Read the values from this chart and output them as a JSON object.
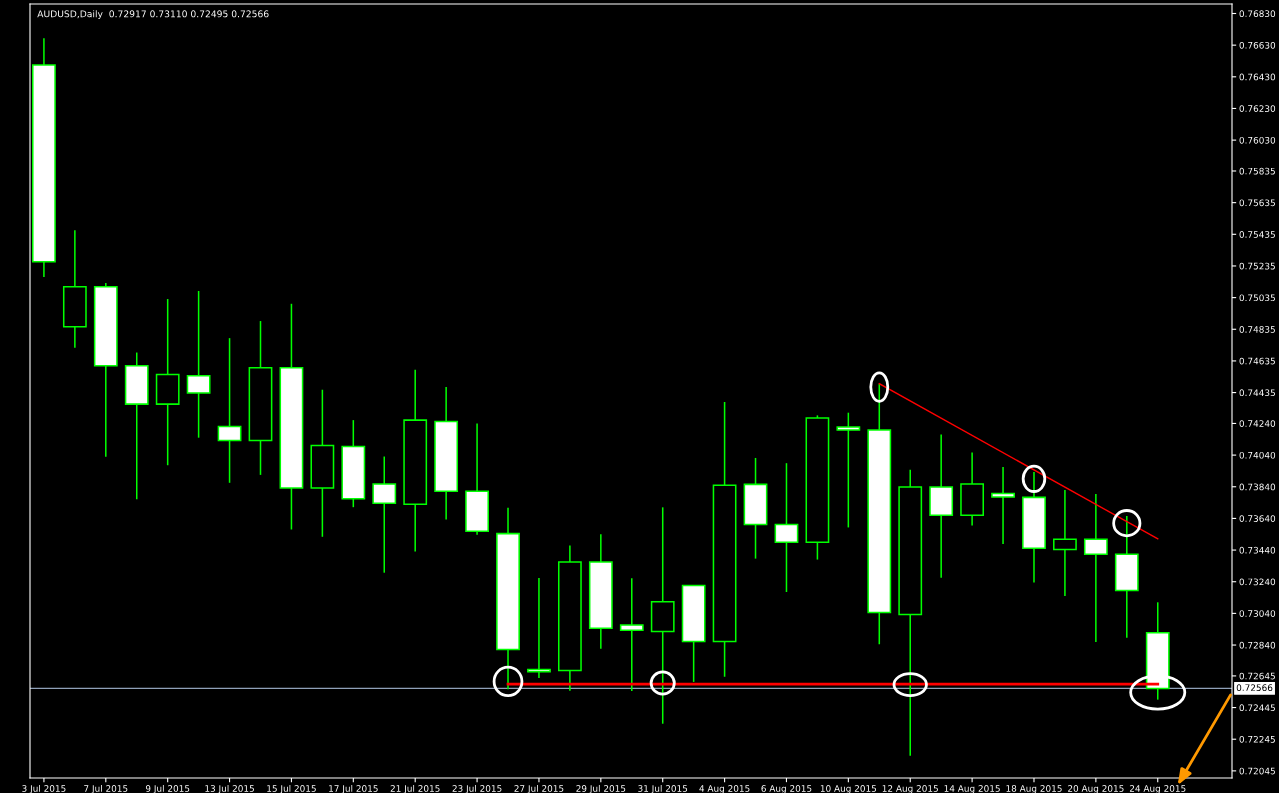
{
  "chart_data": {
    "type": "candlestick",
    "title": "AUDUSD,Daily  0.72917 0.73110 0.72495 0.72566",
    "color": "#00ff00",
    "categories": [
      "3 Jul 2015",
      null,
      "7 Jul 2015",
      null,
      "9 Jul 2015",
      null,
      "13 Jul 2015",
      null,
      "15 Jul 2015",
      null,
      "17 Jul 2015",
      null,
      "21 Jul 2015",
      null,
      "23 Jul 2015",
      null,
      "27 Jul 2015",
      null,
      "29 Jul 2015",
      null,
      "31 Jul 2015",
      null,
      "4 Aug 2015",
      null,
      "6 Aug 2015",
      null,
      "10 Aug 2015",
      null,
      "12 Aug 2015",
      null,
      "14 Aug 2015",
      null,
      "18 Aug 2015",
      null,
      "20 Aug 2015",
      null,
      "24 Aug 2015"
    ],
    "ohlc": [
      [
        0.76504,
        0.76674,
        0.75166,
        0.75261
      ],
      [
        0.74851,
        0.7546,
        0.74718,
        0.75103
      ],
      [
        0.75103,
        0.75128,
        0.7403,
        0.74604
      ],
      [
        0.74604,
        0.74688,
        0.73761,
        0.74362
      ],
      [
        0.74362,
        0.75026,
        0.73976,
        0.74549
      ],
      [
        0.74541,
        0.75077,
        0.7415,
        0.74433
      ],
      [
        0.74221,
        0.74779,
        0.73865,
        0.74132
      ],
      [
        0.74132,
        0.74887,
        0.73915,
        0.74592
      ],
      [
        0.74592,
        0.74996,
        0.7357,
        0.73832
      ],
      [
        0.73832,
        0.74453,
        0.73524,
        0.741
      ],
      [
        0.74095,
        0.74261,
        0.73711,
        0.73764
      ],
      [
        0.73857,
        0.74031,
        0.73297,
        0.73736
      ],
      [
        0.73729,
        0.74579,
        0.73431,
        0.74261
      ],
      [
        0.74253,
        0.74471,
        0.73633,
        0.73812
      ],
      [
        0.73812,
        0.7424,
        0.73537,
        0.73559
      ],
      [
        0.73544,
        0.73708,
        0.7256,
        0.72812
      ],
      [
        0.72686,
        0.73264,
        0.72631,
        0.72671
      ],
      [
        0.72679,
        0.73469,
        0.72552,
        0.73365
      ],
      [
        0.73365,
        0.7354,
        0.72817,
        0.72946
      ],
      [
        0.72966,
        0.73262,
        0.72549,
        0.72933
      ],
      [
        0.72925,
        0.7371,
        0.72343,
        0.73114
      ],
      [
        0.73216,
        0.73216,
        0.72607,
        0.72862
      ],
      [
        0.72862,
        0.74376,
        0.72639,
        0.73849
      ],
      [
        0.73855,
        0.74022,
        0.73386,
        0.73602
      ],
      [
        0.73602,
        0.73989,
        0.73175,
        0.7349
      ],
      [
        0.7349,
        0.74291,
        0.7338,
        0.74274
      ],
      [
        0.74217,
        0.74308,
        0.73583,
        0.74198
      ],
      [
        0.74198,
        0.74491,
        0.72845,
        0.73046
      ],
      [
        0.73033,
        0.73948,
        0.7214,
        0.73838
      ],
      [
        0.73838,
        0.7417,
        0.73265,
        0.7366
      ],
      [
        0.7366,
        0.74056,
        0.73595,
        0.73858
      ],
      [
        0.73797,
        0.73965,
        0.73479,
        0.73775
      ],
      [
        0.73773,
        0.73934,
        0.73235,
        0.73452
      ],
      [
        0.73443,
        0.73819,
        0.7315,
        0.73509
      ],
      [
        0.73509,
        0.73795,
        0.72859,
        0.73413
      ],
      [
        0.73413,
        0.73655,
        0.72886,
        0.73185
      ],
      [
        0.72917,
        0.7311,
        0.72495,
        0.72566
      ]
    ],
    "series": [
      {
        "type": "line",
        "color": "#ff0000",
        "values": [
          null,
          null,
          null,
          null,
          null,
          null,
          null,
          null,
          null,
          null,
          null,
          null,
          null,
          null,
          null,
          0.72593,
          0.72593,
          0.72593,
          0.72593,
          0.72593,
          0.72593,
          0.72593,
          0.72593,
          0.72593,
          0.72593,
          0.72593,
          0.72593,
          0.72593,
          0.72593,
          0.72593,
          0.72593,
          0.72593,
          0.72593,
          0.72593,
          0.72593,
          0.72593,
          0.72593
        ]
      },
      {
        "type": "line",
        "color": "#ff0000",
        "values": [
          null,
          null,
          null,
          null,
          null,
          null,
          null,
          null,
          null,
          null,
          null,
          null,
          null,
          null,
          null,
          null,
          null,
          null,
          null,
          null,
          null,
          null,
          null,
          null,
          null,
          null,
          null,
          0.74491,
          null,
          null,
          null,
          null,
          null,
          null,
          null,
          null,
          0.73511
        ]
      }
    ],
    "ref_lines": [
      {
        "axis": "y",
        "value": 0.72566,
        "label": "0.72566",
        "color": "#8fa0b8"
      }
    ],
    "ylim": [
      0.72,
      0.7689
    ],
    "yticks": [
      {
        "value": 0.7683,
        "label": "0.76830"
      },
      {
        "value": 0.7663,
        "label": "0.76630"
      },
      {
        "value": 0.7643,
        "label": "0.76430"
      },
      {
        "value": 0.7623,
        "label": "0.76230"
      },
      {
        "value": 0.7603,
        "label": "0.76030"
      },
      0.75835,
      0.75635,
      0.75435,
      0.75235,
      0.75035,
      0.74835,
      0.74635,
      0.74435,
      {
        "value": 0.7424,
        "label": "0.74240"
      },
      {
        "value": 0.7404,
        "label": "0.74040"
      },
      {
        "value": 0.7384,
        "label": "0.73840"
      },
      {
        "value": 0.7364,
        "label": "0.73640"
      },
      {
        "value": 0.7344,
        "label": "0.73440"
      },
      {
        "value": 0.7324,
        "label": "0.73240"
      },
      {
        "value": 0.7304,
        "label": "0.73040"
      },
      {
        "value": 0.7284,
        "label": "0.72840"
      },
      0.72645,
      0.72445,
      0.72245,
      0.72045
    ],
    "grid": false,
    "legend": false
  }
}
